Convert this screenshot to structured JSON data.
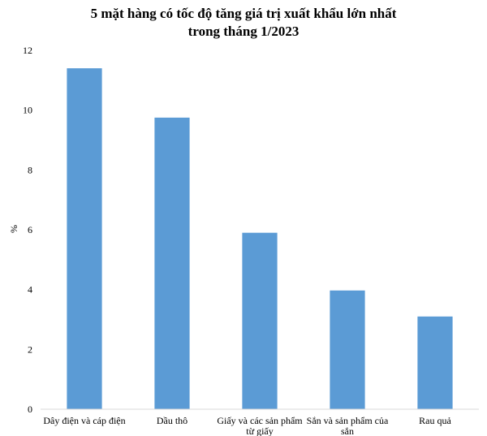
{
  "chart_data": {
    "type": "bar",
    "title_lines": [
      "5 mặt hàng có tốc độ tăng giá trị xuất khẩu lớn nhất",
      "trong tháng 1/2023"
    ],
    "categories": [
      "Dây điện và cáp điện",
      "Dầu thô",
      "Giấy và các sản phẩm từ giấy",
      "Sắn và sản phẩm của sắn",
      "Rau quả"
    ],
    "category_label_lines": [
      [
        "Dây điện và cáp điện"
      ],
      [
        "Dầu thô"
      ],
      [
        "Giấy và các sản phẩm",
        "từ giấy"
      ],
      [
        "Sắn và sản phẩm của",
        "sắn"
      ],
      [
        "Rau quả"
      ]
    ],
    "values": [
      11.4,
      9.75,
      5.9,
      3.97,
      3.1
    ],
    "xlabel": "",
    "ylabel": "%",
    "ylim": [
      0,
      12
    ],
    "yticks": [
      0,
      2,
      4,
      6,
      8,
      10,
      12
    ],
    "bar_color": "#5b9bd5",
    "grid": false,
    "legend": "none"
  }
}
